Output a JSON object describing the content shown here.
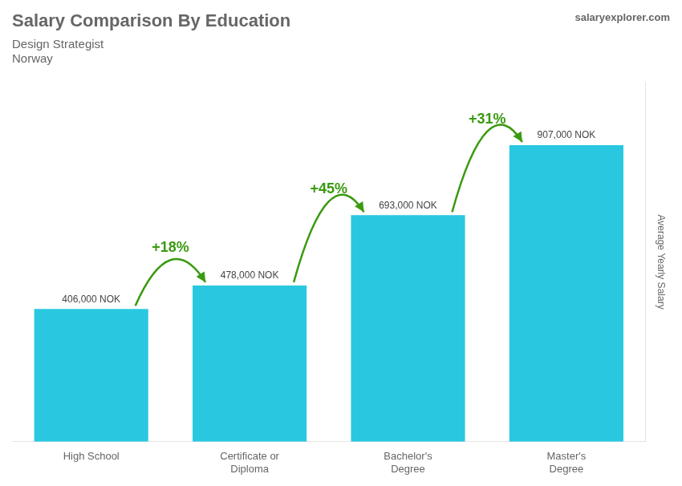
{
  "chart_data": {
    "type": "bar",
    "title": "Salary Comparison By Education",
    "subtitle": [
      "Design Strategist",
      "Norway"
    ],
    "credit": "salaryexplorer.com",
    "y_label": "Average Yearly Salary",
    "categories": [
      "High School",
      "Certificate or\nDiploma",
      "Bachelor's\nDegree",
      "Master's\nDegree"
    ],
    "values": [
      406000,
      478000,
      693000,
      907000
    ],
    "value_labels": [
      "406,000 NOK",
      "478,000 NOK",
      "693,000 NOK",
      "907,000 NOK"
    ],
    "data_labels": true,
    "annotations": [
      "+18%",
      "+45%",
      "+31%"
    ],
    "color": "#29c8e0",
    "ylim": [
      0,
      1100000
    ],
    "tick_labels": "x",
    "grid": false
  }
}
